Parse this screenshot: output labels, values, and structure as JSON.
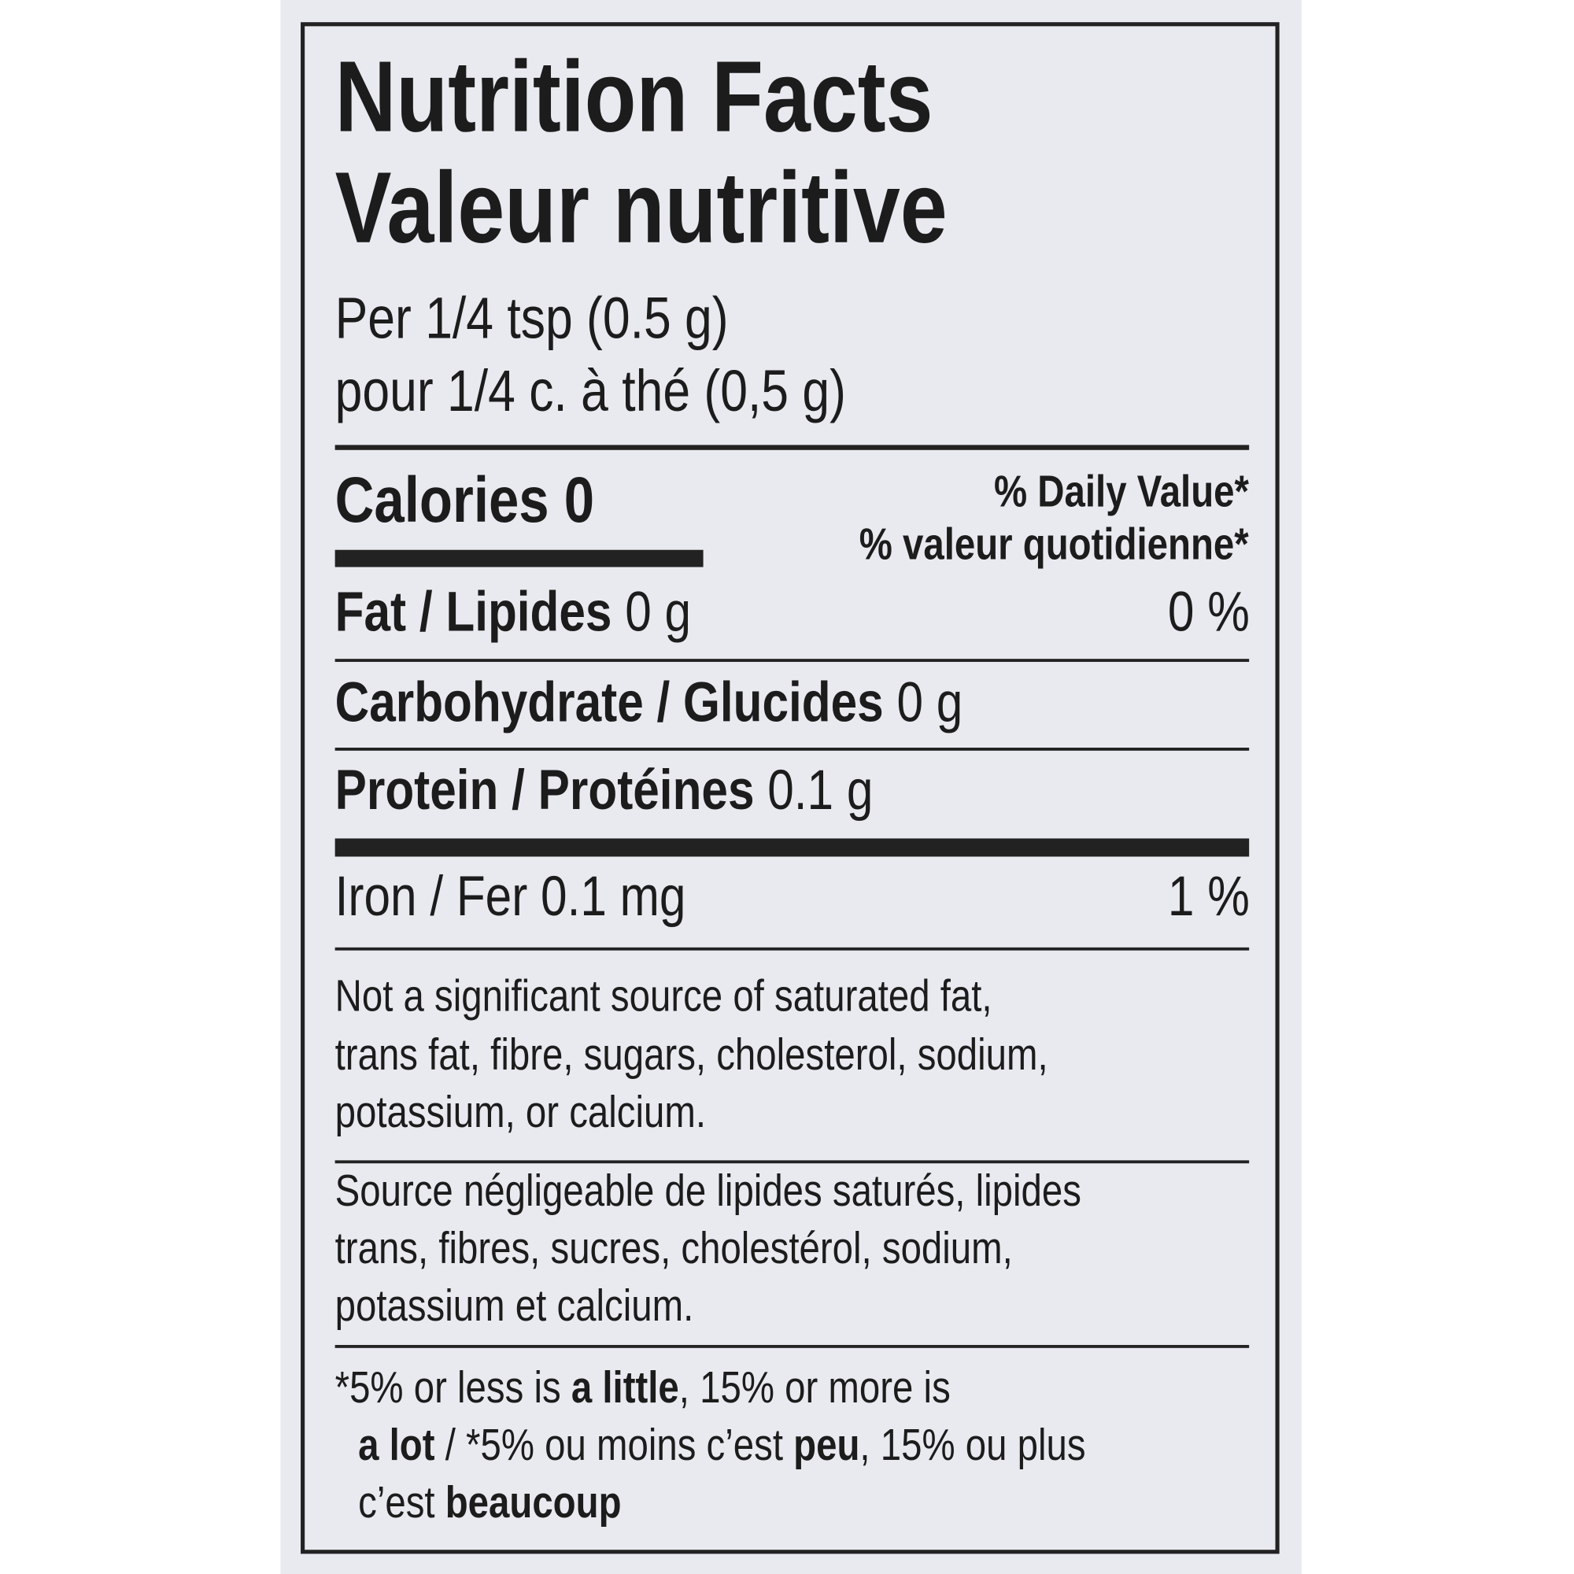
{
  "title": {
    "en": "Nutrition Facts",
    "fr": "Valeur nutritive"
  },
  "serving": {
    "en": "Per 1/4 tsp (0.5 g)",
    "fr": "pour 1/4 c. à thé (0,5 g)"
  },
  "calories": {
    "label": "Calories 0"
  },
  "daily_value_header": {
    "en": "% Daily Value*",
    "fr": "% valeur quotidienne*"
  },
  "nutrients": [
    {
      "name": "Fat / Lipides",
      "amount": "0 g",
      "dv": "0 %"
    },
    {
      "name": "Carbohydrate / Glucides",
      "amount": "0 g",
      "dv": ""
    },
    {
      "name": "Protein / Protéines",
      "amount": "0.1 g",
      "dv": ""
    },
    {
      "name": "Iron / Fer 0.1 mg",
      "amount": "",
      "dv": "1 %"
    }
  ],
  "note_en": [
    "Not a significant source of saturated fat,",
    "trans fat, fibre, sugars, cholesterol, sodium,",
    "potassium, or calcium."
  ],
  "note_fr": [
    "Source négligeable de lipides saturés, lipides",
    "trans, fibres, sucres, cholestérol, sodium,",
    "potassium et calcium."
  ],
  "footnote": {
    "l1a": "*5% or less is ",
    "l1b": "a little",
    "l1c": ", 15% or more is",
    "l2a": "a lot",
    "l2b": " / *5% ou moins c’est ",
    "l2c": "peu",
    "l2d": ", 15% ou plus",
    "l3a": "c’est ",
    "l3b": "beaucoup"
  },
  "colors": {
    "background": "#e8eaef",
    "ink": "#1c1c1c"
  }
}
